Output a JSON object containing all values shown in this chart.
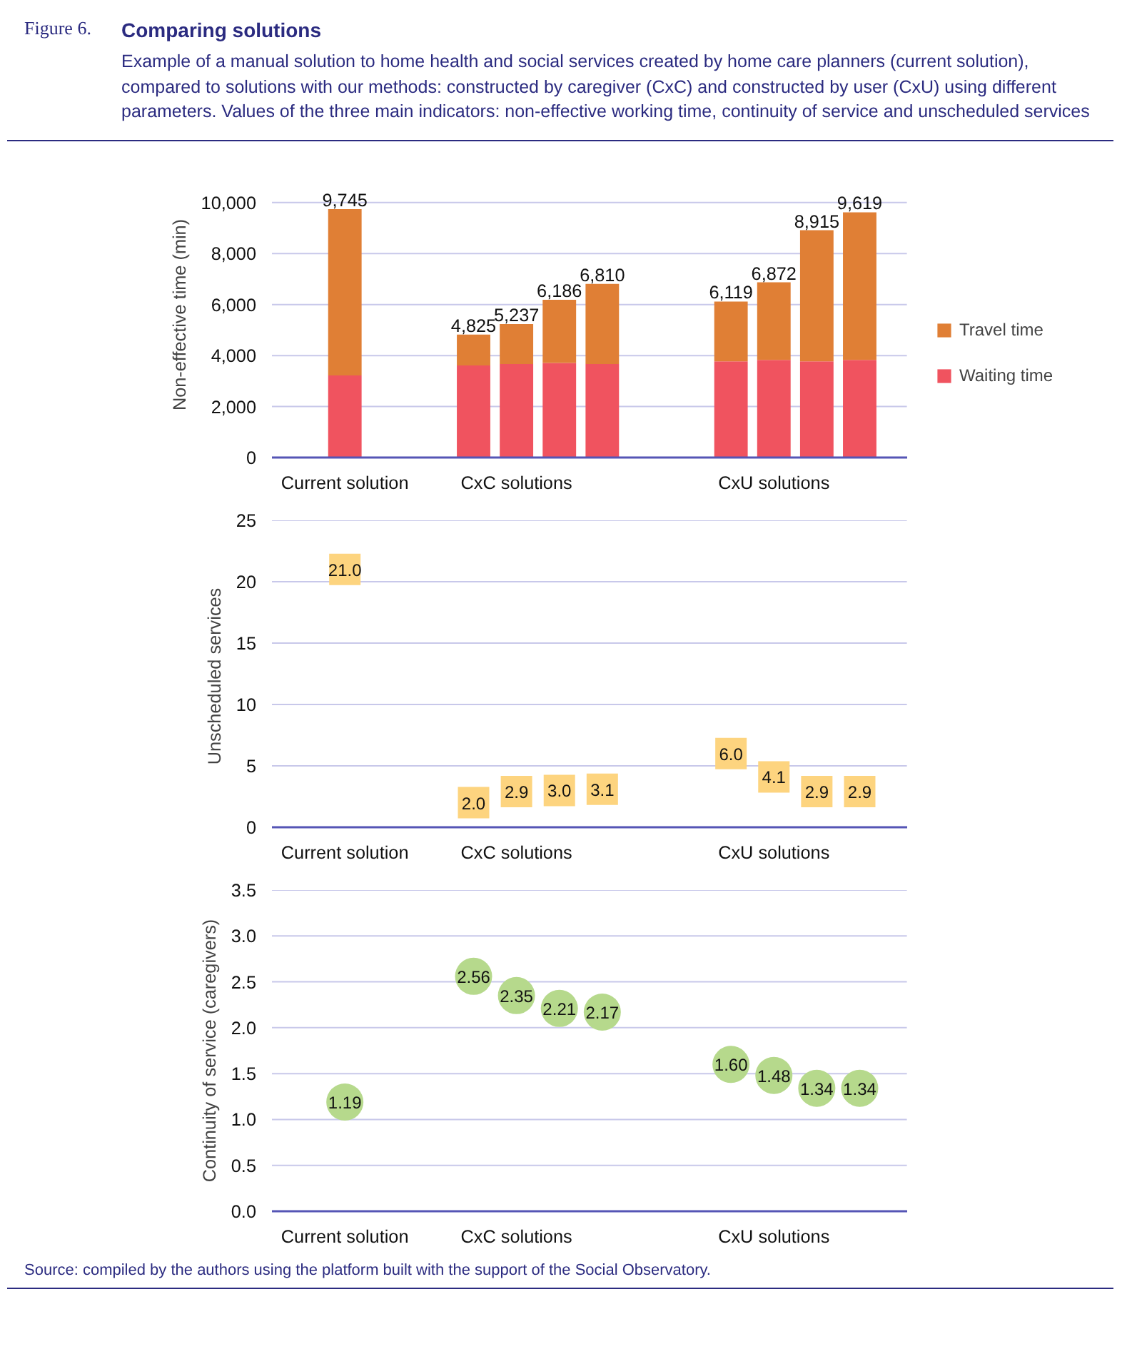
{
  "chart_data": [
    {
      "type": "bar",
      "title": "Comparing solutions",
      "subtitle": "Example of a manual solution to home health and social services created by home care planners (current solution), compared to solutions with our methods: constructed by caregiver (CxC) and constructed by user (CxU) using different parameters. Values of the three main indicators: non-effective working time, continuity of service and unscheduled services",
      "annotations": [
        "Figure 6."
      ],
      "ylabel": "Non-effective time (min)",
      "stacked": true,
      "categories": [
        "Current solution",
        null,
        null,
        null,
        "CxC solutions",
        null,
        null,
        null,
        null,
        null,
        "CxU solutions",
        null,
        null
      ],
      "ylim": [
        0,
        10000
      ],
      "yticks": [
        {
          "value": 0,
          "label": "0"
        },
        {
          "value": 2000,
          "label": "2,000"
        },
        {
          "value": 4000,
          "label": "4,000"
        },
        {
          "value": 6000,
          "label": "6,000"
        },
        {
          "value": 8000,
          "label": "8,000"
        },
        {
          "value": 10000,
          "label": "10,000"
        }
      ],
      "grid": "y",
      "legend": "right",
      "totals": [
        "9,745",
        null,
        null,
        "4,825",
        "5,237",
        "6,186",
        "6,810",
        null,
        null,
        "6,119",
        "6,872",
        "8,915",
        "9,619"
      ],
      "series": [
        {
          "name": "Waiting time",
          "color": "#f0535f",
          "values": [
            3220,
            null,
            null,
            3610,
            3670,
            3710,
            3670,
            null,
            null,
            3770,
            3830,
            3770,
            3830
          ]
        },
        {
          "name": "Travel time",
          "color": "#e07f35",
          "values": [
            6525,
            null,
            null,
            1215,
            1567,
            2476,
            3140,
            null,
            null,
            2349,
            3042,
            5145,
            5789
          ]
        }
      ]
    },
    {
      "type": "scatter",
      "ylabel": "Unscheduled  services",
      "marker": "square",
      "data_labels": true,
      "categories": [
        "Current solution",
        null,
        null,
        null,
        "CxC solutions",
        null,
        null,
        null,
        null,
        null,
        "CxU solutions",
        null,
        null
      ],
      "ylim": [
        0,
        25
      ],
      "yticks": [
        0,
        5,
        10,
        15,
        20,
        25
      ],
      "grid": "y",
      "series": [
        {
          "color": "#fdd47f",
          "values": [
            21.0,
            null,
            null,
            2.0,
            2.9,
            3.0,
            3.1,
            null,
            null,
            6.0,
            4.1,
            2.9,
            2.9
          ],
          "value_labels": [
            "21.0",
            null,
            null,
            "2.0",
            "2.9",
            "3.0",
            "3.1",
            null,
            null,
            "6.0",
            "4.1",
            "2.9",
            "2.9"
          ]
        }
      ]
    },
    {
      "type": "scatter",
      "ylabel": "Continuity of service (caregivers)",
      "marker": "circle",
      "data_labels": true,
      "categories": [
        "Current solution",
        null,
        null,
        null,
        "CxC solutions",
        null,
        null,
        null,
        null,
        null,
        "CxU solutions",
        null,
        null
      ],
      "ylim": [
        0,
        3.5
      ],
      "yticks": [
        {
          "value": 0,
          "label": "0.0"
        },
        {
          "value": 0.5,
          "label": "0.5"
        },
        {
          "value": 1,
          "label": "1.0"
        },
        {
          "value": 1.5,
          "label": "1.5"
        },
        {
          "value": 2,
          "label": "2.0"
        },
        {
          "value": 2.5,
          "label": "2.5"
        },
        {
          "value": 3,
          "label": "3.0"
        },
        {
          "value": 3.5,
          "label": "3.5"
        }
      ],
      "grid": "y",
      "annotations": [
        "Source: compiled by the authors using the platform built with the support of the Social Observatory."
      ],
      "series": [
        {
          "color": "#b6d98c",
          "values": [
            1.19,
            null,
            null,
            2.56,
            2.35,
            2.21,
            2.17,
            null,
            null,
            1.6,
            1.48,
            1.34,
            1.34
          ],
          "value_labels": [
            "1.19",
            null,
            null,
            "2.56",
            "2.35",
            "2.21",
            "2.17",
            null,
            null,
            "1.60",
            "1.48",
            "1.34",
            "1.34"
          ]
        }
      ]
    }
  ]
}
